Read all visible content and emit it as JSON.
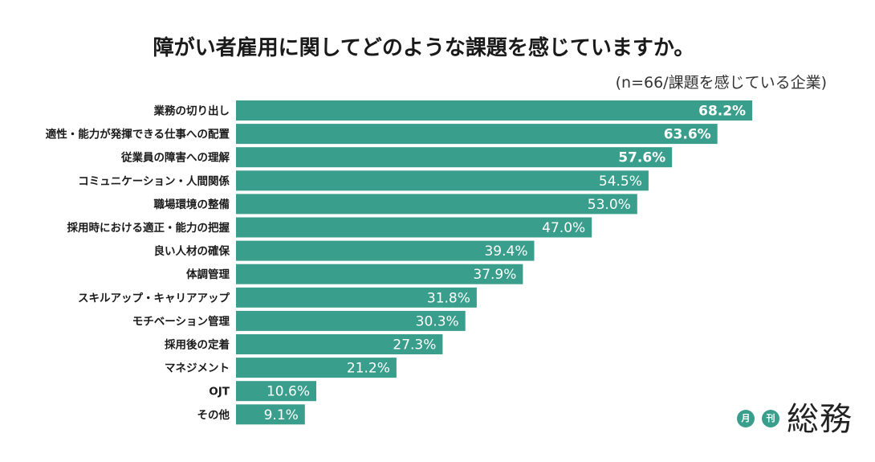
{
  "chart_data": {
    "type": "bar",
    "orientation": "horizontal",
    "title": "障がい者雇用に関してどのような課題を感じていますか。",
    "subtitle": "(n=66/課題を感じている企業)",
    "categories": [
      "業務の切り出し",
      "適性・能力が発揮できる仕事への配置",
      "従業員の障害への理解",
      "コミュニケーション・人間関係",
      "職場環境の整備",
      "採用時における適正・能力の把握",
      "良い人材の確保",
      "体調管理",
      "スキルアップ・キャリアアップ",
      "モチベーション管理",
      "採用後の定着",
      "マネジメント",
      "OJT",
      "その他"
    ],
    "values": [
      68.2,
      63.6,
      57.6,
      54.5,
      53.0,
      47.0,
      39.4,
      37.9,
      31.8,
      30.3,
      27.3,
      21.2,
      10.6,
      9.1
    ],
    "data_labels": [
      "68.2%",
      "63.6%",
      "57.6%",
      "54.5%",
      "53.0%",
      "47.0%",
      "39.4%",
      "37.9%",
      "31.8%",
      "30.3%",
      "27.3%",
      "21.2%",
      "10.6%",
      "9.1%"
    ],
    "bold_labels_count": 3,
    "xlim": [
      0,
      70
    ],
    "grid": false,
    "legend": "none",
    "bar_color": "#3a9e8c"
  },
  "logo": {
    "badge_1": "月",
    "badge_2": "刊",
    "name": "総務"
  }
}
